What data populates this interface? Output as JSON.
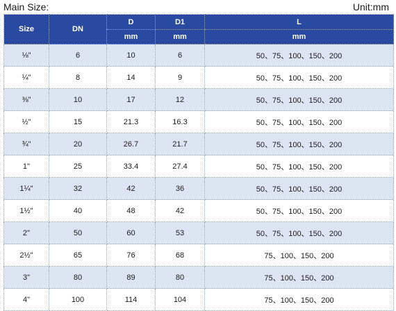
{
  "header": {
    "title": "Main Size:",
    "unit": "Unit:mm"
  },
  "table": {
    "columns": {
      "size": "Size",
      "dn": "DN",
      "d": "D",
      "d1": "D1",
      "l": "L",
      "d_unit": "mm",
      "d1_unit": "mm",
      "l_unit": "mm"
    },
    "rows": [
      {
        "size": "⅛\"",
        "dn": "6",
        "d": "10",
        "d1": "6",
        "l": "50、75、100、150、200"
      },
      {
        "size": "¼\"",
        "dn": "8",
        "d": "14",
        "d1": "9",
        "l": "50、75、100、150、200"
      },
      {
        "size": "⅜\"",
        "dn": "10",
        "d": "17",
        "d1": "12",
        "l": "50、75、100、150、200"
      },
      {
        "size": "½\"",
        "dn": "15",
        "d": "21.3",
        "d1": "16.3",
        "l": "50、75、100、150、200"
      },
      {
        "size": "¾\"",
        "dn": "20",
        "d": "26.7",
        "d1": "21.7",
        "l": "50、75、100、150、200"
      },
      {
        "size": "1''",
        "dn": "25",
        "d": "33.4",
        "d1": "27.4",
        "l": "50、75、100、150、200"
      },
      {
        "size": "1¼\"",
        "dn": "32",
        "d": "42",
        "d1": "36",
        "l": "50、75、100、150、200"
      },
      {
        "size": "1½\"",
        "dn": "40",
        "d": "48",
        "d1": "42",
        "l": "50、75、100、150、200"
      },
      {
        "size": "2''",
        "dn": "50",
        "d": "60",
        "d1": "53",
        "l": "50、75、100、150、200"
      },
      {
        "size": "2½\"",
        "dn": "65",
        "d": "76",
        "d1": "68",
        "l": "75、100、150、200"
      },
      {
        "size": "3\"",
        "dn": "80",
        "d": "89",
        "d1": "80",
        "l": "75、100、150、200"
      },
      {
        "size": "4\"",
        "dn": "100",
        "d": "114",
        "d1": "104",
        "l": "75、100、150、200"
      }
    ]
  },
  "colors": {
    "header_bg": "#2a4aa1",
    "header_text": "#ffffff",
    "row_shade": "#dbe4f0",
    "row_plain": "#ffffff"
  }
}
